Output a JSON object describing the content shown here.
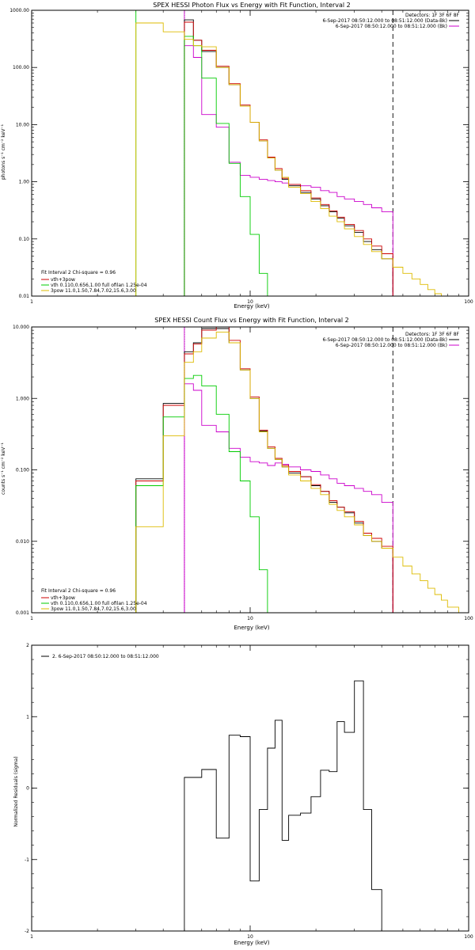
{
  "chart_data": [
    {
      "type": "line",
      "title": "SPEX HESSI Photon Flux vs Energy with Fit Function, Interval 2",
      "xlabel": "Energy (keV)",
      "ylabel": "photons s⁻¹ cm⁻² keV⁻¹",
      "xscale": "log",
      "yscale": "log",
      "xlim": [
        1,
        100
      ],
      "ylim": [
        0.01,
        1000
      ],
      "xticks": [
        {
          "v": 1,
          "label": "1"
        },
        {
          "v": 10,
          "label": "10"
        },
        {
          "v": 100,
          "label": "100"
        }
      ],
      "yticks": [
        {
          "v": 0.01,
          "label": "0.01"
        },
        {
          "v": 0.1,
          "label": "0.10"
        },
        {
          "v": 1,
          "label": "1.00"
        },
        {
          "v": 10,
          "label": "10.00"
        },
        {
          "v": 100,
          "label": "100.00"
        },
        {
          "v": 1000,
          "label": "1000.00"
        }
      ],
      "vlines": [
        {
          "x": 3.0,
          "color": "#00cc00",
          "dash": "none"
        },
        {
          "x": 5.0,
          "color": "#000000",
          "dash": "1,2"
        },
        {
          "x": 5.0,
          "color": "#cc00cc",
          "dash": "none"
        },
        {
          "x": 45.0,
          "color": "#000000",
          "dash": "6,4"
        }
      ],
      "header_lines": [
        "Detectors: 1F 3F 6F 8F",
        "6-Sep-2017 08:50:12.000 to 08:51:12.000 (Data-Bk)",
        "6-Sep-2017 08:50:12.000 to 08:51:12.000 (Bk)"
      ],
      "fit_text": "Fit Interval 2   Chi-square = 0.96",
      "series": [
        {
          "name": "6-Sep-2017 08:50:12.000 to 08:51:12.000 (Data-Bk)",
          "color": "#000000",
          "edges": [
            5,
            5.5,
            6,
            7,
            8,
            9,
            10,
            11,
            12,
            13,
            14,
            15,
            17,
            19,
            21,
            23,
            25,
            27,
            30,
            33,
            36,
            40,
            45
          ],
          "values": [
            680,
            300,
            190,
            100,
            50,
            21,
            11,
            5.2,
            2.6,
            1.6,
            1.1,
            0.85,
            0.65,
            0.5,
            0.38,
            0.3,
            0.23,
            0.17,
            0.13,
            0.09,
            0.065,
            0.045
          ]
        },
        {
          "name": "6-Sep-2017 08:50:12.000 to 08:51:12.000 (Bk)",
          "color": "#cc00cc",
          "edges": [
            5,
            5.5,
            6,
            7,
            8,
            9,
            10,
            11,
            12,
            13,
            14,
            15,
            17,
            19,
            21,
            23,
            25,
            27,
            30,
            33,
            36,
            40,
            45
          ],
          "values": [
            240,
            150,
            15,
            9,
            2.2,
            1.3,
            1.2,
            1.1,
            1.05,
            1.0,
            0.95,
            0.9,
            0.85,
            0.8,
            0.7,
            0.65,
            0.55,
            0.5,
            0.45,
            0.4,
            0.35,
            0.3
          ]
        },
        {
          "name": "vth+3pow",
          "color": "#cc0000",
          "edges": [
            5,
            5.5,
            6,
            7,
            8,
            9,
            10,
            11,
            12,
            13,
            14,
            15,
            17,
            19,
            21,
            23,
            25,
            27,
            30,
            33,
            36,
            40,
            45
          ],
          "values": [
            620,
            300,
            200,
            105,
            52,
            22,
            11,
            5.4,
            2.7,
            1.7,
            1.15,
            0.9,
            0.7,
            0.52,
            0.4,
            0.31,
            0.24,
            0.18,
            0.14,
            0.1,
            0.075,
            0.055
          ]
        },
        {
          "name": "vth 0.110,0.656,1.00   full ofilan 1.25e-04",
          "color": "#00cc00",
          "edges": [
            5,
            5.5,
            6,
            7,
            8,
            9,
            10,
            11,
            12
          ],
          "values": [
            350,
            240,
            65,
            10.5,
            2.1,
            0.55,
            0.12,
            0.025
          ]
        },
        {
          "name": "3pow 11.0,1.50,7.84,7.02,15.6,3.00",
          "color": "#ddbb00",
          "edges": [
            3,
            4,
            5,
            5.5,
            6,
            7,
            8,
            9,
            10,
            11,
            12,
            13,
            14,
            15,
            17,
            19,
            21,
            23,
            25,
            27,
            30,
            33,
            36,
            40,
            45,
            50,
            55,
            60,
            65,
            70,
            75,
            80
          ],
          "values": [
            600,
            420,
            310,
            240,
            230,
            100,
            50,
            21,
            11,
            5.2,
            2.6,
            1.6,
            1.2,
            0.8,
            0.62,
            0.45,
            0.34,
            0.25,
            0.2,
            0.15,
            0.11,
            0.08,
            0.06,
            0.045,
            0.032,
            0.025,
            0.02,
            0.016,
            0.013,
            0.011,
            0.01
          ]
        }
      ]
    },
    {
      "type": "line",
      "title": "SPEX HESSI Count Flux vs Energy with Fit Function, Interval 2",
      "xlabel": "Energy (keV)",
      "ylabel": "counts s⁻¹ cm⁻² keV⁻¹",
      "xscale": "log",
      "yscale": "log",
      "xlim": [
        1,
        100
      ],
      "ylim": [
        0.001,
        10
      ],
      "xticks": [
        {
          "v": 1,
          "label": "1"
        },
        {
          "v": 10,
          "label": "10"
        },
        {
          "v": 100,
          "label": "100"
        }
      ],
      "yticks": [
        {
          "v": 0.001,
          "label": "0.001"
        },
        {
          "v": 0.01,
          "label": "0.010"
        },
        {
          "v": 0.1,
          "label": "0.100"
        },
        {
          "v": 1,
          "label": "1.000"
        },
        {
          "v": 10,
          "label": "10.000"
        }
      ],
      "vlines": [
        {
          "x": 5.0,
          "color": "#000000",
          "dash": "1,2"
        },
        {
          "x": 5.0,
          "color": "#cc00cc",
          "dash": "none"
        },
        {
          "x": 45.0,
          "color": "#000000",
          "dash": "6,4"
        }
      ],
      "header_lines": [
        "Detectors: 1F 3F 6F 8F",
        "6-Sep-2017 08:50:12.000 to 08:51:12.000 (Data-Bk)",
        "6-Sep-2017 08:50:12.000 to 08:51:12.000 (Bk)"
      ],
      "fit_text": "Fit Interval 2   Chi-square = 0.96",
      "series": [
        {
          "name": "6-Sep-2017 08:50:12.000 to 08:51:12.000 (Data-Bk)",
          "color": "#000000",
          "edges": [
            3,
            4,
            5,
            5.5,
            6,
            7,
            8,
            9,
            10,
            11,
            12,
            13,
            14,
            15,
            17,
            19,
            21,
            23,
            25,
            27,
            30,
            33,
            36,
            40,
            45
          ],
          "values": [
            0.075,
            0.85,
            4.5,
            6,
            9.5,
            9.5,
            6,
            2.5,
            1.0,
            0.35,
            0.2,
            0.14,
            0.11,
            0.09,
            0.08,
            0.06,
            0.05,
            0.035,
            0.03,
            0.025,
            0.018,
            0.012,
            0.01,
            0.008
          ]
        },
        {
          "name": "6-Sep-2017 08:50:12.000 to 08:51:12.000 (Bk)",
          "color": "#cc00cc",
          "edges": [
            5,
            5.5,
            6,
            7,
            8,
            9,
            10,
            11,
            12,
            13,
            14,
            15,
            17,
            19,
            21,
            23,
            25,
            27,
            30,
            33,
            36,
            40,
            45
          ],
          "values": [
            1.6,
            1.3,
            0.42,
            0.34,
            0.2,
            0.15,
            0.13,
            0.125,
            0.115,
            0.125,
            0.12,
            0.11,
            0.1,
            0.095,
            0.085,
            0.075,
            0.065,
            0.06,
            0.055,
            0.05,
            0.045,
            0.035
          ]
        },
        {
          "name": "vth+3pow",
          "color": "#cc0000",
          "edges": [
            3,
            4,
            5,
            5.5,
            6,
            7,
            8,
            9,
            10,
            11,
            12,
            13,
            14,
            15,
            17,
            19,
            21,
            23,
            25,
            27,
            30,
            33,
            36,
            40,
            45
          ],
          "values": [
            0.07,
            0.8,
            4.2,
            5.8,
            9,
            10,
            6.5,
            2.6,
            1.05,
            0.36,
            0.21,
            0.145,
            0.115,
            0.095,
            0.08,
            0.062,
            0.05,
            0.037,
            0.03,
            0.026,
            0.019,
            0.013,
            0.011,
            0.0085
          ]
        },
        {
          "name": "vth 0.110,0.656,1.00   full ofilan 1.25e-04",
          "color": "#00cc00",
          "edges": [
            3,
            4,
            5,
            5.5,
            6,
            7,
            8,
            9,
            10,
            11,
            12
          ],
          "values": [
            0.06,
            0.55,
            1.9,
            2.1,
            1.5,
            0.6,
            0.18,
            0.07,
            0.022,
            0.004
          ]
        },
        {
          "name": "3pow 11.0,1.50,7.84,7.02,15.6,3.00",
          "color": "#ddbb00",
          "edges": [
            3,
            4,
            5,
            5.5,
            6,
            7,
            8,
            9,
            10,
            11,
            12,
            13,
            14,
            15,
            17,
            19,
            21,
            23,
            25,
            27,
            30,
            33,
            36,
            40,
            45,
            50,
            55,
            60,
            65,
            70,
            75,
            80,
            90,
            100
          ],
          "values": [
            0.016,
            0.3,
            3.2,
            4.5,
            7,
            8.5,
            6,
            2.5,
            1.0,
            0.34,
            0.2,
            0.14,
            0.11,
            0.085,
            0.07,
            0.055,
            0.045,
            0.033,
            0.027,
            0.022,
            0.017,
            0.012,
            0.01,
            0.008,
            0.006,
            0.0045,
            0.0035,
            0.0028,
            0.0022,
            0.0018,
            0.0015,
            0.0012,
            0.001
          ]
        }
      ]
    },
    {
      "type": "line",
      "title": "",
      "xlabel": "Energy (keV)",
      "ylabel": "Normalized Residuals (sigma)",
      "xscale": "log",
      "yscale": "linear",
      "xlim": [
        1,
        100
      ],
      "ylim": [
        -2,
        2
      ],
      "xticks": [
        {
          "v": 1,
          "label": "1"
        },
        {
          "v": 10,
          "label": "10"
        },
        {
          "v": 100,
          "label": "100"
        }
      ],
      "yticks": [
        {
          "v": -2,
          "label": "-2"
        },
        {
          "v": -1,
          "label": "-1"
        },
        {
          "v": 0,
          "label": "0"
        },
        {
          "v": 1,
          "label": "1"
        },
        {
          "v": 2,
          "label": "2"
        }
      ],
      "legend_text": "2.  6-Sep-2017 08:50:12.000 to 08:51:12.000",
      "series": [
        {
          "name": "2.  6-Sep-2017 08:50:12.000 to 08:51:12.000",
          "color": "#000000",
          "edges": [
            5,
            6,
            7,
            8,
            9,
            10,
            11,
            12,
            13,
            14,
            15,
            17,
            19,
            21,
            23,
            25,
            27,
            30,
            33,
            36,
            40,
            45
          ],
          "values": [
            0.15,
            0.26,
            -0.7,
            0.74,
            0.72,
            -1.3,
            -0.3,
            0.56,
            0.95,
            -0.73,
            -0.38,
            -0.35,
            -0.12,
            0.25,
            0.23,
            0.93,
            0.78,
            1.5,
            -0.3,
            -1.42,
            -2.0
          ]
        }
      ]
    }
  ]
}
